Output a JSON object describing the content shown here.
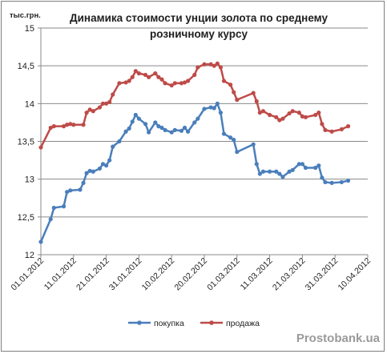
{
  "chart_data": {
    "type": "line",
    "title_line1": "Динамика стоимости унции золота по среднему",
    "title_line2": "розничному курсу",
    "ylabel": "тыс.грн.",
    "ylim": [
      12,
      15
    ],
    "yticks": [
      "12",
      "12,5",
      "13",
      "13,5",
      "14",
      "14,5",
      "15"
    ],
    "x_start": "01.01.2012",
    "x_end": "10.04.2012",
    "x_tick_labels": [
      "01.01.2012",
      "11.01.2012",
      "21.01.2012",
      "31.01.2012",
      "10.02.2012",
      "20.02.2012",
      "01.03.2012",
      "11.03.2012",
      "21.03.2012",
      "31.03.2012",
      "10.04.2012"
    ],
    "grid": "horizontal",
    "legend_position": "bottom",
    "series": [
      {
        "name": "покупка",
        "color": "#4a7ebb",
        "points": [
          [
            "01.01.2012",
            12.17
          ],
          [
            "04.01.2012",
            12.47
          ],
          [
            "05.01.2012",
            12.62
          ],
          [
            "08.01.2012",
            12.64
          ],
          [
            "09.01.2012",
            12.83
          ],
          [
            "10.01.2012",
            12.85
          ],
          [
            "13.01.2012",
            12.86
          ],
          [
            "14.01.2012",
            12.95
          ],
          [
            "15.01.2012",
            13.08
          ],
          [
            "16.01.2012",
            13.11
          ],
          [
            "17.01.2012",
            13.1
          ],
          [
            "19.01.2012",
            13.14
          ],
          [
            "20.01.2012",
            13.2
          ],
          [
            "21.01.2012",
            13.18
          ],
          [
            "22.01.2012",
            13.25
          ],
          [
            "23.01.2012",
            13.43
          ],
          [
            "25.01.2012",
            13.5
          ],
          [
            "27.01.2012",
            13.63
          ],
          [
            "28.01.2012",
            13.67
          ],
          [
            "29.01.2012",
            13.76
          ],
          [
            "30.01.2012",
            13.85
          ],
          [
            "31.01.2012",
            13.8
          ],
          [
            "02.02.2012",
            13.73
          ],
          [
            "03.02.2012",
            13.62
          ],
          [
            "05.02.2012",
            13.75
          ],
          [
            "06.02.2012",
            13.7
          ],
          [
            "07.02.2012",
            13.68
          ],
          [
            "08.02.2012",
            13.65
          ],
          [
            "10.02.2012",
            13.62
          ],
          [
            "11.02.2012",
            13.65
          ],
          [
            "13.02.2012",
            13.64
          ],
          [
            "14.02.2012",
            13.68
          ],
          [
            "15.02.2012",
            13.63
          ],
          [
            "17.02.2012",
            13.75
          ],
          [
            "18.02.2012",
            13.8
          ],
          [
            "20.02.2012",
            13.93
          ],
          [
            "22.02.2012",
            13.95
          ],
          [
            "23.02.2012",
            13.94
          ],
          [
            "24.02.2012",
            14.0
          ],
          [
            "25.02.2012",
            13.88
          ],
          [
            "26.02.2012",
            13.6
          ],
          [
            "28.02.2012",
            13.55
          ],
          [
            "29.02.2012",
            13.52
          ],
          [
            "01.03.2012",
            13.36
          ],
          [
            "06.03.2012",
            13.46
          ],
          [
            "07.03.2012",
            13.2
          ],
          [
            "08.03.2012",
            13.07
          ],
          [
            "09.03.2012",
            13.1
          ],
          [
            "11.03.2012",
            13.1
          ],
          [
            "13.03.2012",
            13.1
          ],
          [
            "14.03.2012",
            13.07
          ],
          [
            "15.03.2012",
            13.03
          ],
          [
            "17.03.2012",
            13.1
          ],
          [
            "18.03.2012",
            13.12
          ],
          [
            "20.03.2012",
            13.2
          ],
          [
            "21.03.2012",
            13.2
          ],
          [
            "22.03.2012",
            13.15
          ],
          [
            "25.03.2012",
            13.15
          ],
          [
            "26.03.2012",
            13.18
          ],
          [
            "27.03.2012",
            13.02
          ],
          [
            "28.03.2012",
            12.96
          ],
          [
            "30.03.2012",
            12.95
          ],
          [
            "02.04.2012",
            12.96
          ],
          [
            "04.04.2012",
            12.98
          ]
        ]
      },
      {
        "name": "продажа",
        "color": "#be4b48",
        "points": [
          [
            "01.01.2012",
            13.42
          ],
          [
            "04.01.2012",
            13.68
          ],
          [
            "05.01.2012",
            13.7
          ],
          [
            "08.01.2012",
            13.7
          ],
          [
            "09.01.2012",
            13.72
          ],
          [
            "10.01.2012",
            13.73
          ],
          [
            "11.01.2012",
            13.72
          ],
          [
            "14.01.2012",
            13.72
          ],
          [
            "15.01.2012",
            13.88
          ],
          [
            "16.01.2012",
            13.92
          ],
          [
            "17.01.2012",
            13.9
          ],
          [
            "19.01.2012",
            13.95
          ],
          [
            "20.01.2012",
            14.0
          ],
          [
            "21.01.2012",
            14.0
          ],
          [
            "22.01.2012",
            14.02
          ],
          [
            "23.01.2012",
            14.12
          ],
          [
            "25.01.2012",
            14.27
          ],
          [
            "27.01.2012",
            14.28
          ],
          [
            "28.01.2012",
            14.3
          ],
          [
            "29.01.2012",
            14.35
          ],
          [
            "30.01.2012",
            14.43
          ],
          [
            "31.01.2012",
            14.4
          ],
          [
            "02.02.2012",
            14.38
          ],
          [
            "03.02.2012",
            14.35
          ],
          [
            "05.02.2012",
            14.4
          ],
          [
            "06.02.2012",
            14.35
          ],
          [
            "07.02.2012",
            14.32
          ],
          [
            "08.02.2012",
            14.27
          ],
          [
            "10.02.2012",
            14.24
          ],
          [
            "11.02.2012",
            14.27
          ],
          [
            "13.02.2012",
            14.27
          ],
          [
            "14.02.2012",
            14.28
          ],
          [
            "15.02.2012",
            14.3
          ],
          [
            "17.02.2012",
            14.38
          ],
          [
            "18.02.2012",
            14.48
          ],
          [
            "20.02.2012",
            14.52
          ],
          [
            "22.02.2012",
            14.52
          ],
          [
            "23.02.2012",
            14.5
          ],
          [
            "24.02.2012",
            14.53
          ],
          [
            "25.02.2012",
            14.48
          ],
          [
            "26.02.2012",
            14.3
          ],
          [
            "28.02.2012",
            14.25
          ],
          [
            "29.02.2012",
            14.15
          ],
          [
            "01.03.2012",
            14.05
          ],
          [
            "06.03.2012",
            14.14
          ],
          [
            "07.03.2012",
            14.03
          ],
          [
            "08.03.2012",
            13.88
          ],
          [
            "09.03.2012",
            13.9
          ],
          [
            "11.03.2012",
            13.85
          ],
          [
            "13.03.2012",
            13.82
          ],
          [
            "14.03.2012",
            13.78
          ],
          [
            "15.03.2012",
            13.8
          ],
          [
            "17.03.2012",
            13.87
          ],
          [
            "18.03.2012",
            13.9
          ],
          [
            "20.03.2012",
            13.88
          ],
          [
            "21.03.2012",
            13.83
          ],
          [
            "22.03.2012",
            13.82
          ],
          [
            "25.03.2012",
            13.85
          ],
          [
            "26.03.2012",
            13.88
          ],
          [
            "27.03.2012",
            13.73
          ],
          [
            "28.03.2012",
            13.65
          ],
          [
            "30.03.2012",
            13.63
          ],
          [
            "02.04.2012",
            13.66
          ],
          [
            "04.04.2012",
            13.7
          ]
        ]
      }
    ]
  },
  "watermark": "Prostobank.ua"
}
